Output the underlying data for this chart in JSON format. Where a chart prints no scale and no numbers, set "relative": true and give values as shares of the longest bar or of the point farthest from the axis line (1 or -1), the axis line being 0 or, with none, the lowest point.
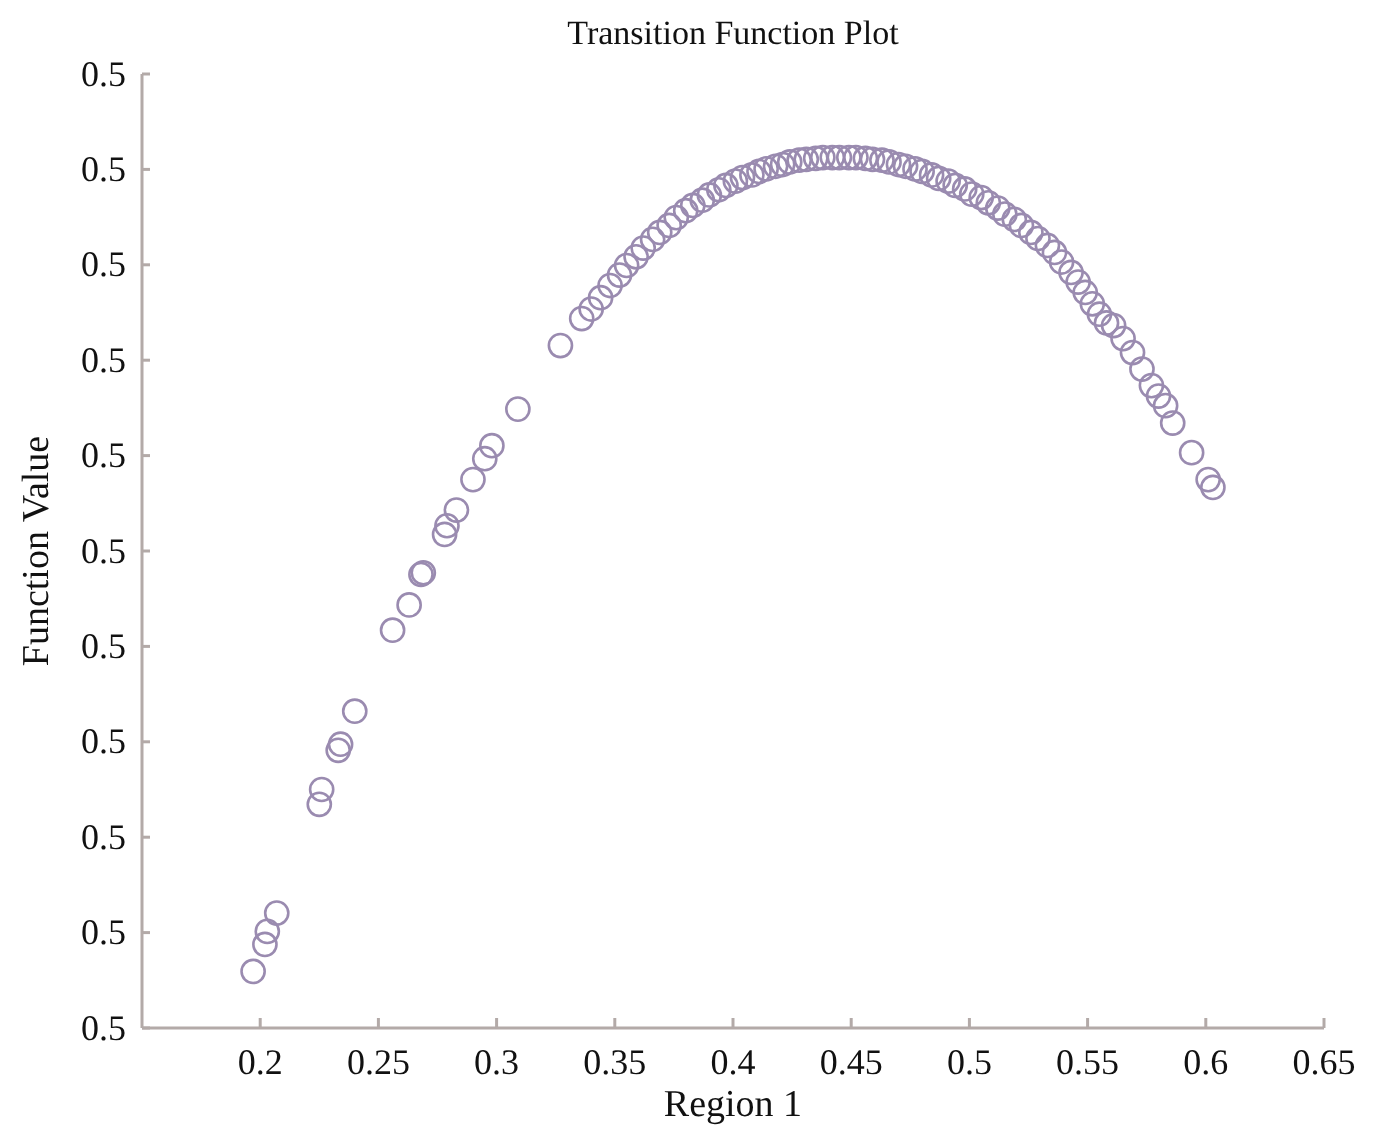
{
  "chart_data": {
    "type": "scatter",
    "title": "Transition Function Plot",
    "xlabel": "Region 1",
    "ylabel": "Function Value",
    "xlim": [
      0.15,
      0.65
    ],
    "xticks": [
      0.2,
      0.25,
      0.3,
      0.35,
      0.4,
      0.45,
      0.5,
      0.55,
      0.6,
      0.65
    ],
    "relative": true,
    "annotations": [
      "0.5",
      "0.5",
      "0.5",
      "0.5",
      "0.5",
      "0.5",
      "0.5",
      "0.5",
      "0.5",
      "0.5",
      "0.5"
    ],
    "marker": "circle",
    "series": [
      {
        "color": "#9a8bb0",
        "x": [
          0.197,
          0.202,
          0.203,
          0.207,
          0.225,
          0.226,
          0.233,
          0.234,
          0.24,
          0.256,
          0.263,
          0.268,
          0.269,
          0.278,
          0.279,
          0.283,
          0.29,
          0.295,
          0.298,
          0.309,
          0.327,
          0.336,
          0.34,
          0.344,
          0.348,
          0.352,
          0.355,
          0.359,
          0.362,
          0.366,
          0.369,
          0.373,
          0.376,
          0.38,
          0.383,
          0.387,
          0.39,
          0.394,
          0.397,
          0.401,
          0.404,
          0.408,
          0.411,
          0.414,
          0.418,
          0.421,
          0.424,
          0.428,
          0.431,
          0.435,
          0.438,
          0.442,
          0.445,
          0.449,
          0.452,
          0.456,
          0.459,
          0.463,
          0.466,
          0.47,
          0.473,
          0.477,
          0.48,
          0.484,
          0.487,
          0.491,
          0.494,
          0.498,
          0.501,
          0.505,
          0.508,
          0.512,
          0.515,
          0.519,
          0.522,
          0.526,
          0.529,
          0.533,
          0.536,
          0.539,
          0.543,
          0.546,
          0.549,
          0.552,
          0.555,
          0.558,
          0.561,
          0.565,
          0.569,
          0.573,
          0.577,
          0.58,
          0.583,
          0.586,
          0.594,
          0.601,
          0.603
        ],
        "values": [
          0.065,
          0.096,
          0.111,
          0.132,
          0.257,
          0.274,
          0.319,
          0.326,
          0.364,
          0.457,
          0.486,
          0.521,
          0.523,
          0.567,
          0.577,
          0.595,
          0.63,
          0.654,
          0.669,
          0.711,
          0.784,
          0.815,
          0.826,
          0.839,
          0.853,
          0.865,
          0.876,
          0.886,
          0.896,
          0.906,
          0.914,
          0.922,
          0.931,
          0.939,
          0.945,
          0.951,
          0.957,
          0.963,
          0.968,
          0.973,
          0.977,
          0.98,
          0.984,
          0.987,
          0.99,
          0.992,
          0.995,
          0.997,
          0.998,
          0.999,
          1,
          1,
          1,
          1,
          1,
          0.999,
          0.998,
          0.997,
          0.995,
          0.992,
          0.99,
          0.987,
          0.984,
          0.98,
          0.976,
          0.973,
          0.968,
          0.964,
          0.958,
          0.954,
          0.948,
          0.942,
          0.935,
          0.929,
          0.922,
          0.914,
          0.907,
          0.899,
          0.891,
          0.88,
          0.868,
          0.857,
          0.845,
          0.832,
          0.82,
          0.81,
          0.807,
          0.792,
          0.776,
          0.757,
          0.738,
          0.726,
          0.715,
          0.695,
          0.661,
          0.63,
          0.621
        ]
      }
    ]
  }
}
